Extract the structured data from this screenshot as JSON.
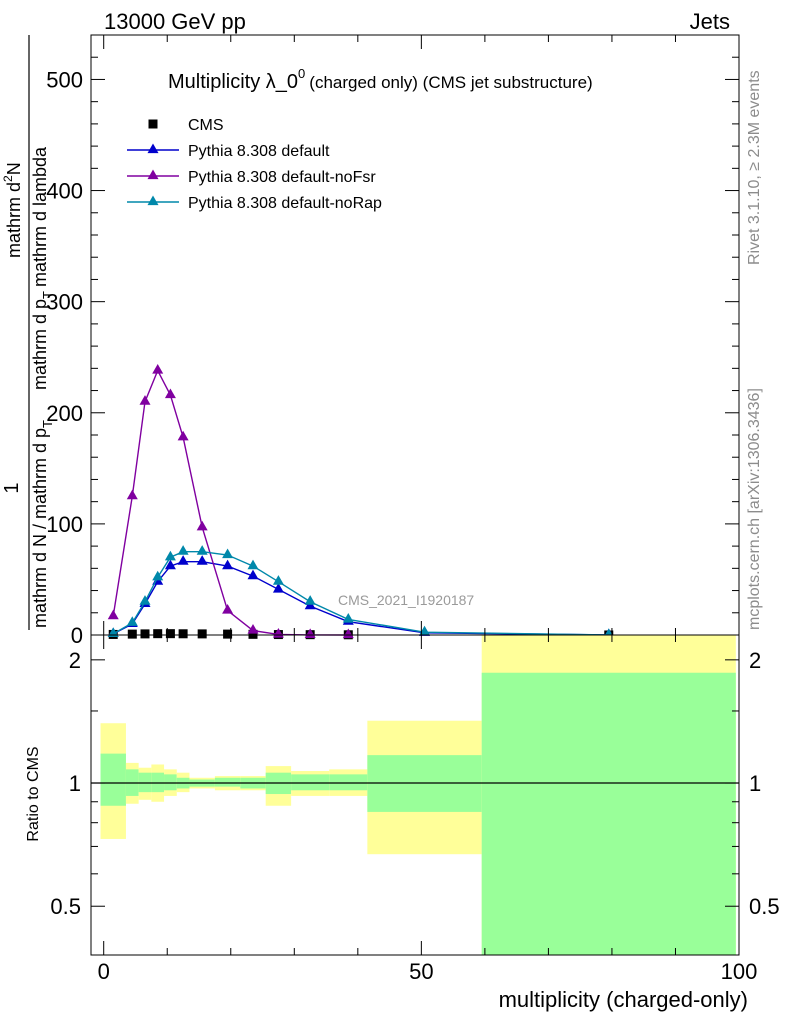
{
  "header": {
    "left": "13000 GeV pp",
    "right": "Jets"
  },
  "side_labels": {
    "rivet": "Rivet 3.1.10, ≥ 2.3M events",
    "mcplots": "mcplots.cern.ch [arXiv:1306.3436]"
  },
  "watermark": "CMS_2021_I1920187",
  "chart_data": [
    {
      "type": "line",
      "title_main": "Multiplicity λ_0",
      "title_sup": "0",
      "title_rest": "(charged only) (CMS jet substructure)",
      "ylabel": "1 / (mathrm d N / mathrm d p_T) · mathrm d^2N / (mathrm d p_T mathrm d lambda)",
      "ylabel_parts": {
        "num1": "1",
        "den1": "mathrm d N / mathrm d p",
        "den1_sub": "T",
        "num2_a": "mathrm d",
        "num2_sup": "2",
        "num2_b": "N",
        "den2_a": "mathrm d p",
        "den2_sub": "T",
        "den2_b": "mathrm d lambda"
      },
      "xlim": [
        -2,
        100
      ],
      "ylim": [
        0,
        540
      ],
      "yticks": [
        "0",
        "100",
        "200",
        "300",
        "400",
        "500"
      ],
      "legend_position": "top-left",
      "series": [
        {
          "name": "CMS",
          "color": "#000000",
          "marker": "square",
          "x": [
            1.5,
            4.5,
            6.5,
            8.5,
            10.5,
            12.5,
            15.5,
            19.5,
            23.5,
            27.5,
            32.5,
            38.5,
            79.5
          ],
          "y": [
            0.5,
            0.8,
            1.0,
            1.2,
            1.2,
            1.1,
            1.0,
            0.8,
            0.6,
            0.4,
            0.3,
            0.2,
            0.02
          ]
        },
        {
          "name": "Pythia 8.308 default",
          "color": "#0000cc",
          "marker": "triangle",
          "x": [
            1.5,
            4.5,
            6.5,
            8.5,
            10.5,
            12.5,
            15.5,
            19.5,
            23.5,
            27.5,
            32.5,
            38.5,
            50.5,
            79.5
          ],
          "y": [
            1,
            10,
            28,
            48,
            62,
            66,
            66,
            62,
            53,
            41,
            26,
            12,
            2,
            0.1
          ]
        },
        {
          "name": "Pythia 8.308 default-noFsr",
          "color": "#8000a0",
          "marker": "triangle",
          "x": [
            1.5,
            4.5,
            6.5,
            8.5,
            10.5,
            12.5,
            15.5,
            19.5,
            23.5,
            27.5,
            32.5,
            38.5
          ],
          "y": [
            17,
            125,
            210,
            238,
            216,
            178,
            97,
            22,
            4,
            0.5,
            0.1,
            0
          ]
        },
        {
          "name": "Pythia 8.308 default-noRap",
          "color": "#0088aa",
          "marker": "triangle",
          "x": [
            1.5,
            4.5,
            6.5,
            8.5,
            10.5,
            12.5,
            15.5,
            19.5,
            23.5,
            27.5,
            32.5,
            38.5,
            50.5,
            79.5
          ],
          "y": [
            1,
            11,
            30,
            52,
            70,
            75,
            75,
            72,
            62,
            48,
            30,
            14,
            2.5,
            0.1
          ]
        }
      ]
    },
    {
      "type": "area",
      "ylabel": "Ratio to CMS",
      "xlabel": "multiplicity (charged-only)",
      "xlim": [
        -2,
        100
      ],
      "ylim": [
        0.38,
        2.3
      ],
      "xticks": [
        "0",
        "50",
        "100"
      ],
      "yticks": [
        "0.5",
        "1",
        "2"
      ],
      "reference_line": 1,
      "bands": [
        {
          "x0": -0.5,
          "x1": 3.5,
          "stat_lo": 0.88,
          "stat_hi": 1.18,
          "tot_lo": 0.73,
          "tot_hi": 1.4
        },
        {
          "x0": 3.5,
          "x1": 5.5,
          "stat_lo": 0.93,
          "stat_hi": 1.08,
          "tot_lo": 0.89,
          "tot_hi": 1.12
        },
        {
          "x0": 5.5,
          "x1": 7.5,
          "stat_lo": 0.95,
          "stat_hi": 1.06,
          "tot_lo": 0.91,
          "tot_hi": 1.09
        },
        {
          "x0": 7.5,
          "x1": 9.5,
          "stat_lo": 0.95,
          "stat_hi": 1.06,
          "tot_lo": 0.9,
          "tot_hi": 1.11
        },
        {
          "x0": 9.5,
          "x1": 11.5,
          "stat_lo": 0.96,
          "stat_hi": 1.05,
          "tot_lo": 0.93,
          "tot_hi": 1.08
        },
        {
          "x0": 11.5,
          "x1": 13.5,
          "stat_lo": 0.97,
          "stat_hi": 1.03,
          "tot_lo": 0.95,
          "tot_hi": 1.06
        },
        {
          "x0": 13.5,
          "x1": 17.5,
          "stat_lo": 0.98,
          "stat_hi": 1.02,
          "tot_lo": 0.97,
          "tot_hi": 1.03
        },
        {
          "x0": 17.5,
          "x1": 21.5,
          "stat_lo": 0.98,
          "stat_hi": 1.03,
          "tot_lo": 0.96,
          "tot_hi": 1.04
        },
        {
          "x0": 21.5,
          "x1": 25.5,
          "stat_lo": 0.97,
          "stat_hi": 1.03,
          "tot_lo": 0.96,
          "tot_hi": 1.04
        },
        {
          "x0": 25.5,
          "x1": 29.5,
          "stat_lo": 0.94,
          "stat_hi": 1.06,
          "tot_lo": 0.88,
          "tot_hi": 1.1
        },
        {
          "x0": 29.5,
          "x1": 35.5,
          "stat_lo": 0.96,
          "stat_hi": 1.05,
          "tot_lo": 0.93,
          "tot_hi": 1.07
        },
        {
          "x0": 35.5,
          "x1": 41.5,
          "stat_lo": 0.96,
          "stat_hi": 1.05,
          "tot_lo": 0.93,
          "tot_hi": 1.08
        },
        {
          "x0": 41.5,
          "x1": 59.5,
          "stat_lo": 0.85,
          "stat_hi": 1.17,
          "tot_lo": 0.67,
          "tot_hi": 1.42
        },
        {
          "x0": 59.5,
          "x1": 99.5,
          "stat_lo": 0.38,
          "stat_hi": 1.86,
          "tot_lo": 0.38,
          "tot_hi": 2.3
        }
      ],
      "colors": {
        "stat": "#99ff99",
        "total": "#ffff99"
      }
    }
  ]
}
